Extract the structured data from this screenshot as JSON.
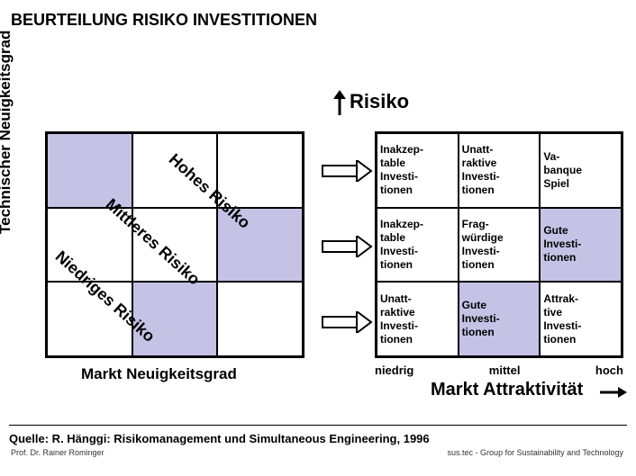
{
  "title": "BEURTEILUNG RISIKO INVESTITIONEN",
  "y_axis": "Technischer Neuigkeitsgrad",
  "x_axis": "Markt Neuigkeitsgrad",
  "risiko_label": "Risiko",
  "risk_bands": {
    "high": "Hohes Risiko",
    "mid": "Mittleres Risiko",
    "low": "Niedriges Risiko"
  },
  "left_matrix": {
    "cols": 3,
    "rows": 3,
    "shaded_color": "#c4c3e6",
    "bg_color": "#ffffff",
    "cells": [
      {
        "r": 0,
        "c": 0,
        "shaded": true
      },
      {
        "r": 0,
        "c": 1,
        "shaded": false
      },
      {
        "r": 0,
        "c": 2,
        "shaded": false
      },
      {
        "r": 1,
        "c": 0,
        "shaded": false
      },
      {
        "r": 1,
        "c": 1,
        "shaded": false
      },
      {
        "r": 1,
        "c": 2,
        "shaded": true
      },
      {
        "r": 2,
        "c": 0,
        "shaded": false
      },
      {
        "r": 2,
        "c": 1,
        "shaded": true
      },
      {
        "r": 2,
        "c": 2,
        "shaded": false
      }
    ]
  },
  "right_matrix": {
    "cols": 3,
    "rows": 3,
    "shaded_color": "#c4c3e6",
    "bg_color": "#ffffff",
    "cells": [
      {
        "r": 0,
        "c": 0,
        "shaded": false,
        "text": "Inakzep-\ntable\nInvesti-\ntionen"
      },
      {
        "r": 0,
        "c": 1,
        "shaded": false,
        "text": "Unatt-\nraktive\nInvesti-\ntionen"
      },
      {
        "r": 0,
        "c": 2,
        "shaded": false,
        "text": "Va-\nbanque\nSpiel"
      },
      {
        "r": 1,
        "c": 0,
        "shaded": false,
        "text": "Inakzep-\ntable\nInvesti-\ntionen"
      },
      {
        "r": 1,
        "c": 1,
        "shaded": false,
        "text": "Frag-\nwürdige\nInvesti-\ntionen"
      },
      {
        "r": 1,
        "c": 2,
        "shaded": true,
        "text": "Gute\nInvesti-\ntionen"
      },
      {
        "r": 2,
        "c": 0,
        "shaded": false,
        "text": "Unatt-\nraktive\nInvesti-\ntionen"
      },
      {
        "r": 2,
        "c": 1,
        "shaded": true,
        "text": "Gute\nInvesti-\ntionen"
      },
      {
        "r": 2,
        "c": 2,
        "shaded": false,
        "text": "Attrak-\ntive\nInvesti-\ntionen"
      }
    ]
  },
  "attraktivitaet": {
    "low": "niedrig",
    "mid": "mittel",
    "high": "hoch",
    "title": "Markt Attraktivität"
  },
  "source": "Quelle: R. Hänggi: Risikomanagement und Simultaneous Engineering, 1996",
  "footer_left": "Prof. Dr. Rainer Rominger",
  "footer_right": "sus.tec - Group for Sustainability and Technology",
  "colors": {
    "text": "#000000",
    "background": "#ffffff",
    "border": "#000000",
    "arrow": "#000000"
  }
}
